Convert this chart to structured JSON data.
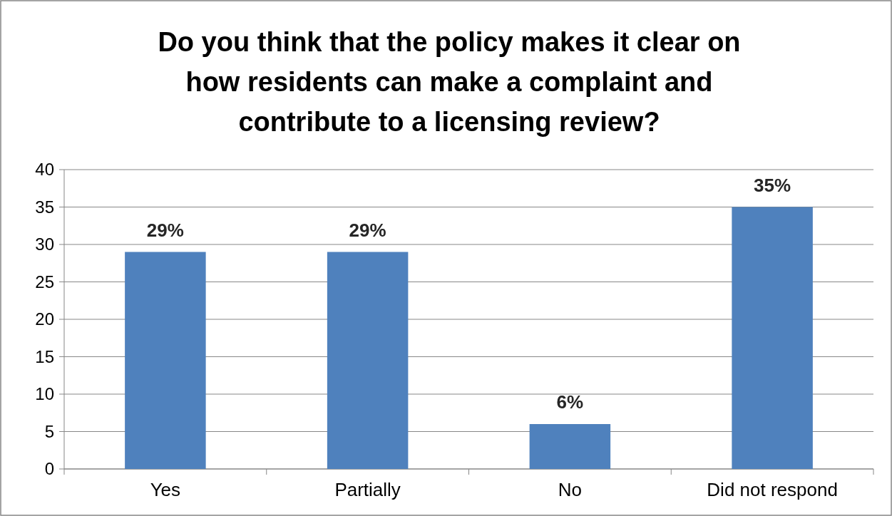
{
  "chart_data": {
    "type": "bar",
    "title": "Do you think that the policy makes it clear on\nhow residents can make a complaint and\ncontribute to a licensing review?",
    "categories": [
      "Yes",
      "Partially",
      "No",
      "Did not respond"
    ],
    "values": [
      29,
      29,
      6,
      35
    ],
    "value_labels": [
      "29%",
      "29%",
      "6%",
      "35%"
    ],
    "color": "#4f81bd",
    "ylim": [
      0,
      40
    ],
    "yticks": [
      0,
      5,
      10,
      15,
      20,
      25,
      30,
      35,
      40
    ],
    "grid": "y"
  }
}
